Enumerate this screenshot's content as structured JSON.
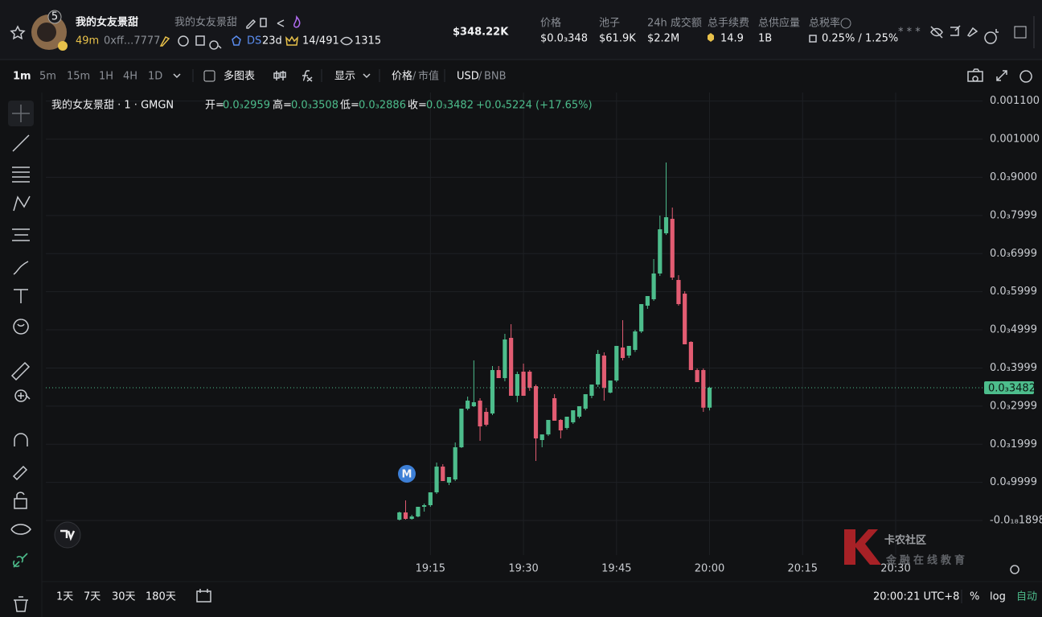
{
  "header": {
    "avatar_badge": "5",
    "name": "我的女友景甜",
    "subname": "我的女友景甜",
    "age": "49m",
    "address": "0xff...7777",
    "ds_label": "DS",
    "ds_age": "23d",
    "holders": "14/491",
    "views": "1315",
    "market_cap": "$348.22K",
    "stats": [
      {
        "label": "价格",
        "value": "$0.0₃348"
      },
      {
        "label": "池子",
        "value": "$61.9K"
      },
      {
        "label": "24h 成交额",
        "value": "$2.2M"
      },
      {
        "label": "总手续费",
        "value": "14.9"
      },
      {
        "label": "总供应量",
        "value": "1B"
      },
      {
        "label": "总税率",
        "value": "0.25% / 1.25%"
      }
    ],
    "more": "* * *"
  },
  "toolbar": {
    "intervals": [
      "1m",
      "5m",
      "15m",
      "1H",
      "4H",
      "1D"
    ],
    "multi_chart": "多图表",
    "display": "显示",
    "price": "价格",
    "separator": "/",
    "market_cap": "市值",
    "currency": "USD",
    "alt_currency": "BNB"
  },
  "legend": {
    "title": "我的女友景甜 · 1 · GMGN",
    "open_label": "开=",
    "open": "0.0₃2959",
    "high_label": "高=",
    "high": "0.0₃3508",
    "low_label": "低=",
    "low": "0.0₃2886",
    "close_label": "收=",
    "close": "0.0₃3482",
    "change": "+0.0₄5224 (+17.65%)"
  },
  "chart_data": {
    "type": "candlestick",
    "x": [
      "19:10",
      "19:11",
      "19:12",
      "19:13",
      "19:14",
      "19:15",
      "19:16",
      "19:17",
      "19:18",
      "19:19",
      "19:20",
      "19:21",
      "19:22",
      "19:23",
      "19:24",
      "19:25",
      "19:26",
      "19:27",
      "19:28",
      "19:29",
      "19:30",
      "19:31",
      "19:32",
      "19:33",
      "19:34",
      "19:35",
      "19:36",
      "19:37",
      "19:38",
      "19:39",
      "19:40",
      "19:41",
      "19:42",
      "19:43",
      "19:44",
      "19:45",
      "19:46",
      "19:47",
      "19:48",
      "19:49",
      "19:50",
      "19:51",
      "19:52",
      "19:53",
      "19:54",
      "19:55",
      "19:56",
      "19:57",
      "19:58",
      "19:59",
      "20:00"
    ],
    "open": [
      2.1e-06,
      2.11e-05,
      4.2e-06,
      1.05e-05,
      3.59e-05,
      4.01e-05,
      7.38e-05,
      0.0001413,
      9.92e-05,
      0.0001076,
      0.000192,
      0.0002932,
      0.0002996,
      0.0003143,
      0.0002848,
      0.0002806,
      0.0003945,
      0.0003734,
      0.0004789,
      0.000327,
      0.0003903,
      0.0003903,
      0.0003523,
      0.000211,
      0.0002257,
      0.0003207,
      0.0002637,
      0.0002426,
      0.0002574,
      0.0002722,
      0.0002932,
      0.000327,
      0.0003565,
      0.0004325,
      0.0003354,
      0.0003671,
      0.0004536,
      0.0004325,
      0.0004473,
      0.0004958,
      0.0005633,
      0.0005802,
      0.0006477,
      0.0007532,
      0.0007911,
      0.0006308,
      0.0005949,
      0.0004684,
      0.0003945,
      0.0003945,
      0.0002959
    ],
    "high": [
      2.32e-05,
      5.27e-05,
      1.48e-05,
      3.59e-05,
      4.43e-05,
      7.38e-05,
      0.0001519,
      0.0001477,
      0.0001139,
      0.0002046,
      0.0002932,
      0.0003249,
      0.0004198,
      0.0003207,
      0.0002954,
      0.0004051,
      0.0004051,
      0.0004895,
      0.0005148,
      0.0003903,
      0.0004114,
      0.0003945,
      0.0003565,
      0.0002257,
      0.0002637,
      0.0003312,
      0.0002658,
      0.0002722,
      0.000289,
      0.0002996,
      0.0003312,
      0.0003565,
      0.0004473,
      0.0004409,
      0.0003671,
      0.0004578,
      0.0005253,
      0.0004578,
      0.0005,
      0.0005675,
      0.0005886,
      0.0006857,
      0.0007996,
      0.0009388,
      0.0008207,
      0.0006434,
      0.0006012,
      0.00047,
      0.0003987,
      0.0003987,
      0.0003508
    ],
    "low": [
      0,
      2.1e-06,
      2.1e-06,
      8.4e-06,
      2.32e-05,
      3.59e-05,
      6.96e-05,
      0.0001034,
      9.28e-05,
      0.0001034,
      0.00019,
      0.000289,
      0.0002975,
      0.0002089,
      0.0002468,
      0.0002764,
      0.0003734,
      0.000365,
      0.000327,
      0.0003101,
      0.000327,
      0.00034,
      0.0001561,
      0.000192,
      0.0002215,
      0.0002616,
      0.0002152,
      0.0002384,
      0.0002532,
      0.000268,
      0.000289,
      0.0003207,
      0.0003502,
      0.0003143,
      0.0003333,
      0.0003629,
      0.0004198,
      0.0004262,
      0.000442,
      0.0004916,
      0.000555,
      0.0005759,
      0.0006413,
      0.0007489,
      0.0006308,
      0.0005633,
      0.000462,
      0.0003945,
      0.0003629,
      0.0002848,
      0.0002886
    ],
    "close": [
      2.11e-05,
      4.2e-06,
      1.05e-05,
      3.59e-05,
      4.01e-05,
      7.38e-05,
      0.0001413,
      0.0001034,
      0.0001139,
      0.000192,
      0.0002932,
      0.0003143,
      0.0003101,
      0.0002468,
      0.0002511,
      0.0003945,
      0.0003734,
      0.0004747,
      0.000327,
      0.000384,
      0.000327,
      0.0003481,
      0.0002152,
      0.0002257,
      0.0002637,
      0.0002616,
      0.0002363,
      0.0002722,
      0.000289,
      0.0002996,
      0.0003312,
      0.0003565,
      0.0004367,
      0.0003481,
      0.0003671,
      0.0004578,
      0.0004262,
      0.0004578,
      0.0004958,
      0.0005675,
      0.0005886,
      0.0006477,
      0.0007637,
      0.0007954,
      0.0006371,
      0.0005675,
      0.000462,
      0.0003945,
      0.0003629,
      0.0002959,
      0.0003482
    ],
    "up_color": "#4dbd8c",
    "down_color": "#e25c72",
    "xlim": [
      "18:13",
      "20:44"
    ],
    "xticks": [
      "19:15",
      "19:30",
      "19:45",
      "20:00",
      "20:15",
      "20:30"
    ],
    "ylim": [
      -9.07e-05,
      0.0011224
    ],
    "yticks": [
      {
        "value": 0.0011,
        "label": "0.001100"
      },
      {
        "value": 0.001,
        "label": "0.001000"
      },
      {
        "value": 0.0009,
        "label": "0.0₃9000"
      },
      {
        "value": 0.0007999,
        "label": "0.0₃7999"
      },
      {
        "value": 0.0006999,
        "label": "0.0₃6999"
      },
      {
        "value": 0.0005999,
        "label": "0.0₃5999"
      },
      {
        "value": 0.0004999,
        "label": "0.0₃4999"
      },
      {
        "value": 0.0003999,
        "label": "0.0₃3999"
      },
      {
        "value": 0.0002999,
        "label": "0.0₃2999"
      },
      {
        "value": 0.0001999,
        "label": "0.0₃1999"
      },
      {
        "value": 9.999e-05,
        "label": "0.0₄9999"
      },
      {
        "value": -1.898e-19,
        "label": "-0.0₁₈1898"
      }
    ],
    "grid": true,
    "current_price": {
      "value": 0.0003482,
      "label": "0.0₃3482"
    },
    "marker": "M"
  },
  "footer": {
    "ranges": [
      "1天",
      "7天",
      "30天",
      "180天"
    ],
    "clock": "20:00:21 UTC+8",
    "percent": "%",
    "log": "log",
    "auto": "自动"
  },
  "watermark": {
    "title": "卡农社区",
    "subtitle": "金融在线教育"
  }
}
